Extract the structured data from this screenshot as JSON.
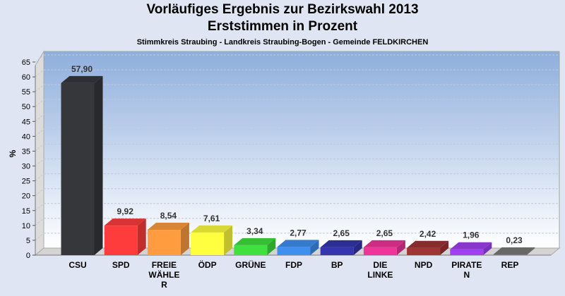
{
  "chart_data": {
    "type": "bar",
    "title": "Vorläufiges Ergebnis zur Bezirkswahl 2013",
    "subtitle": "Erststimmen in Prozent",
    "subtitle2": "Stimmkreis Straubing - Landkreis Straubing-Bogen - Gemeinde FELDKIRCHEN",
    "xlabel": "",
    "ylabel": "%",
    "ylim": [
      0,
      65
    ],
    "yticks": [
      0,
      5,
      10,
      15,
      20,
      25,
      30,
      35,
      40,
      45,
      50,
      55,
      60,
      65
    ],
    "grid": true,
    "categories": [
      [
        "CSU"
      ],
      [
        "SPD"
      ],
      [
        "FREIE",
        "WÄHLE",
        "R"
      ],
      [
        "ÖDP"
      ],
      [
        "GRÜNE"
      ],
      [
        "FDP"
      ],
      [
        "BP"
      ],
      [
        "DIE",
        "LINKE"
      ],
      [
        "NPD"
      ],
      [
        "PIRATE",
        "N"
      ],
      [
        "REP"
      ]
    ],
    "values": [
      57.9,
      9.92,
      8.54,
      7.61,
      3.34,
      2.77,
      2.65,
      2.65,
      2.42,
      1.96,
      0.23
    ],
    "labels": [
      "57,90",
      "9,92",
      "8,54",
      "7,61",
      "3,34",
      "2,77",
      "2,65",
      "2,65",
      "2,42",
      "1,96",
      "0,23"
    ],
    "colors": [
      "#35373b",
      "#ff3c3c",
      "#ff9c40",
      "#ffff40",
      "#40e040",
      "#3f8fef",
      "#3535b0",
      "#f0359a",
      "#a03535",
      "#a040f0",
      "#7a7a7a"
    ]
  }
}
